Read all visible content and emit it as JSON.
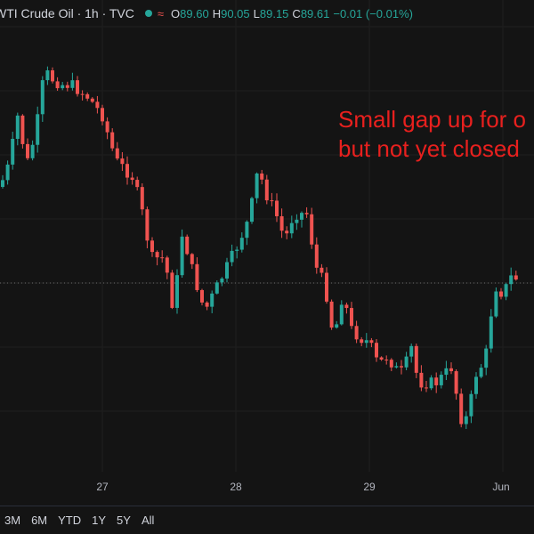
{
  "header": {
    "title": "WTI Crude Oil · 1h · TVC",
    "ohlc": [
      {
        "key": "O",
        "value": "89.60"
      },
      {
        "key": "H",
        "value": "90.05"
      },
      {
        "key": "L",
        "value": "89.15"
      },
      {
        "key": "C",
        "value": "89.61"
      }
    ],
    "change": "−0.01 (−0.01%)"
  },
  "annotation": [
    "Small gap up for o",
    "but not yet closed"
  ],
  "time_axis": [
    "27",
    "28",
    "29",
    "Jun"
  ],
  "ranges": [
    "3M",
    "6M",
    "YTD",
    "1Y",
    "5Y",
    "All"
  ]
}
